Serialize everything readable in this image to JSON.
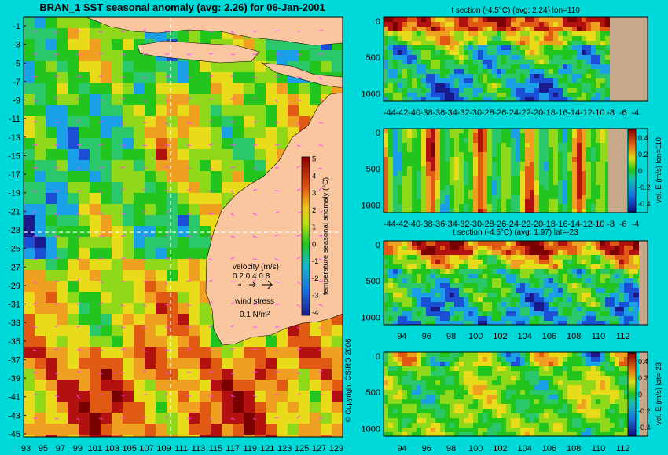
{
  "page": {
    "title": "BRAN_1 SST seasonal anomaly (avg: 2.26) for 06-Jan-2001",
    "copyright": "© Copyright CSIRO 2006"
  },
  "colors": {
    "background": "#00d9d9",
    "land": "#f9c6a0",
    "section_mask": "#c8a88a",
    "colormap": [
      "#1a1a8c",
      "#1a4fd6",
      "#1aa0e6",
      "#2ac86a",
      "#22c41e",
      "#8fd81a",
      "#e8dc1a",
      "#f0a020",
      "#e05a14",
      "#b31010",
      "#7a0000"
    ],
    "vector": "#ff40ff"
  },
  "legend": {
    "velocity_title": "velocity (m/s)",
    "velocity_scale": "0.2 0.4 0.8",
    "wind_title": "wind stress",
    "wind_value": "0.1 N/m²"
  },
  "chart_data": [
    {
      "type": "heatmap",
      "id": "sst-map",
      "x_ticks": [
        "93",
        "95",
        "97",
        "99",
        "101",
        "103",
        "105",
        "107",
        "109",
        "111",
        "113",
        "115",
        "117",
        "119",
        "121",
        "123",
        "125",
        "127",
        "129"
      ],
      "y_ticks": [
        "-1",
        "-3",
        "-5",
        "-7",
        "-9",
        "-11",
        "-13",
        "-15",
        "-17",
        "-19",
        "-21",
        "-23",
        "-25",
        "-27",
        "-29",
        "-31",
        "-33",
        "-35",
        "-37",
        "-39",
        "-41",
        "-43",
        "-45"
      ],
      "xlim": [
        93,
        130
      ],
      "ylim": [
        -45,
        0
      ],
      "reference_lines": {
        "lon": 110,
        "lat": -23
      },
      "colorbar": {
        "label": "temperature seasonal anomaly (°C)",
        "ticks": [
          "5",
          "4",
          "3",
          "2",
          "1",
          "0",
          "-1",
          "-2",
          "-3",
          "-4"
        ],
        "range": [
          -4,
          5
        ]
      }
    },
    {
      "type": "heatmap",
      "id": "t-section-lon110",
      "title": "t section (-4.5°C) (avg: 2.24) lon=110",
      "x_ticks": [
        "-44",
        "-42",
        "-40",
        "-38",
        "-36",
        "-34",
        "-32",
        "-30",
        "-28",
        "-26",
        "-24",
        "-22",
        "-20",
        "-18",
        "-16",
        "-14",
        "-12",
        "-10",
        "-8",
        "-6",
        "-4"
      ],
      "y_ticks": [
        "0",
        "500",
        "1000"
      ],
      "xlim": [
        -45,
        -2
      ],
      "ylim": [
        1050,
        0
      ]
    },
    {
      "type": "heatmap",
      "id": "vel-section-lon110",
      "x_ticks": [
        "-44",
        "-42",
        "-40",
        "-38",
        "-36",
        "-34",
        "-32",
        "-30",
        "-28",
        "-26",
        "-24",
        "-22",
        "-20",
        "-18",
        "-16",
        "-14",
        "-12",
        "-10",
        "-8",
        "-6",
        "-4"
      ],
      "y_ticks": [
        "0",
        "500",
        "1000"
      ],
      "xlim": [
        -45,
        -2
      ],
      "ylim": [
        1050,
        0
      ],
      "colorbar": {
        "label": "vel. E (m/s) lon=110",
        "ticks": [
          "0.4",
          "0.2",
          "0",
          "-0.2",
          "-0.4"
        ],
        "range": [
          -0.5,
          0.5
        ]
      }
    },
    {
      "type": "heatmap",
      "id": "t-section-lat-23",
      "title": "t section (-4.5°C) (avg: 1.97) lat=-23",
      "x_ticks": [
        "94",
        "96",
        "98",
        "100",
        "102",
        "104",
        "106",
        "108",
        "110",
        "112"
      ],
      "y_ticks": [
        "0",
        "500",
        "1000"
      ],
      "xlim": [
        92.5,
        114
      ],
      "ylim": [
        1050,
        0
      ]
    },
    {
      "type": "heatmap",
      "id": "vel-section-lat-23",
      "x_ticks": [
        "94",
        "96",
        "98",
        "100",
        "102",
        "104",
        "106",
        "108",
        "110",
        "112"
      ],
      "y_ticks": [
        "0",
        "500",
        "1000"
      ],
      "xlim": [
        92.5,
        114
      ],
      "ylim": [
        1050,
        0
      ],
      "colorbar": {
        "label": "vel. E (m/s) lat=-23",
        "ticks": [
          "0.4",
          "0.2",
          "0",
          "-0.2",
          "-0.4"
        ],
        "range": [
          -0.5,
          0.5
        ]
      }
    }
  ]
}
